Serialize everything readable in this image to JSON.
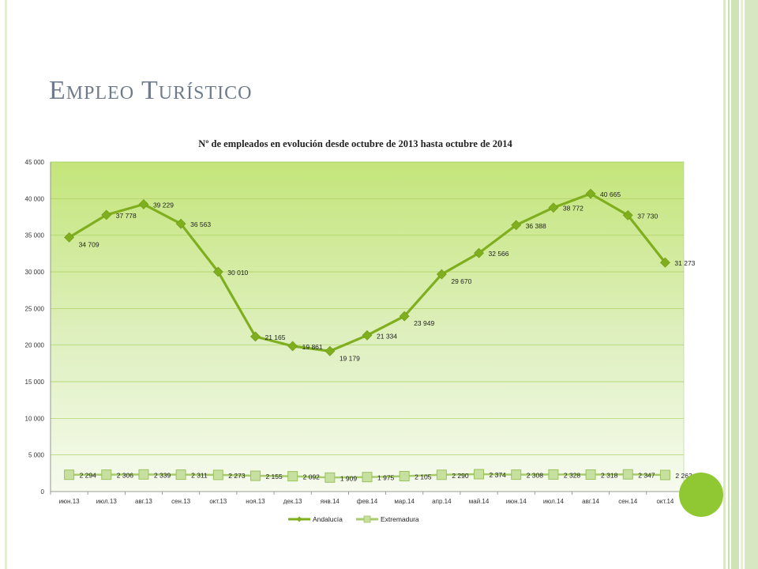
{
  "slide": {
    "title": "Empleo Turístico"
  },
  "colors": {
    "accent_green": "#7fae1e",
    "marker_green": "#c7e0a0",
    "dot_green": "#8fc832"
  },
  "chart_data": {
    "type": "line",
    "title": "Nº de empleados en evolución desde octubre de 2013 hasta octubre de 2014",
    "xlabel": "",
    "ylabel": "",
    "ylim": [
      0,
      45000
    ],
    "yticks": [
      "0",
      "5 000",
      "10 000",
      "15 000",
      "20 000",
      "25 000",
      "30 000",
      "35 000",
      "40 000",
      "45 000"
    ],
    "grid": true,
    "legend_position": "bottom",
    "categories": [
      "июн.13",
      "июл.13",
      "авг.13",
      "сен.13",
      "окт.13",
      "ноя.13",
      "дек.13",
      "янв.14",
      "фев.14",
      "мар.14",
      "апр.14",
      "май.14",
      "июн.14",
      "июл.14",
      "авг.14",
      "сен.14",
      "окт.14"
    ],
    "series": [
      {
        "name": "Andalucía",
        "values": [
          34709,
          37778,
          39229,
          36563,
          30010,
          21165,
          19861,
          19179,
          21334,
          23949,
          29670,
          32566,
          36388,
          38772,
          40665,
          37730,
          31273
        ],
        "labels": [
          "34 709",
          "37 778",
          "39 229",
          "36 563",
          "30 010",
          "21 165",
          "19 861",
          "19 179",
          "21 334",
          "23 949",
          "29 670",
          "32 566",
          "36 388",
          "38 772",
          "40 665",
          "37 730",
          "31 273"
        ]
      },
      {
        "name": "Extremadura",
        "values": [
          2294,
          2306,
          2339,
          2311,
          2273,
          2155,
          2092,
          1909,
          1975,
          2105,
          2290,
          2374,
          2308,
          2328,
          2318,
          2347,
          2263
        ],
        "labels": [
          "2 294",
          "2 306",
          "2 339",
          "2 311",
          "2 273",
          "2 155",
          "2 092",
          "1 909",
          "1 975",
          "2 105",
          "2 290",
          "2 374",
          "2 308",
          "2 328",
          "2 318",
          "2 347",
          "2 263"
        ]
      }
    ]
  }
}
